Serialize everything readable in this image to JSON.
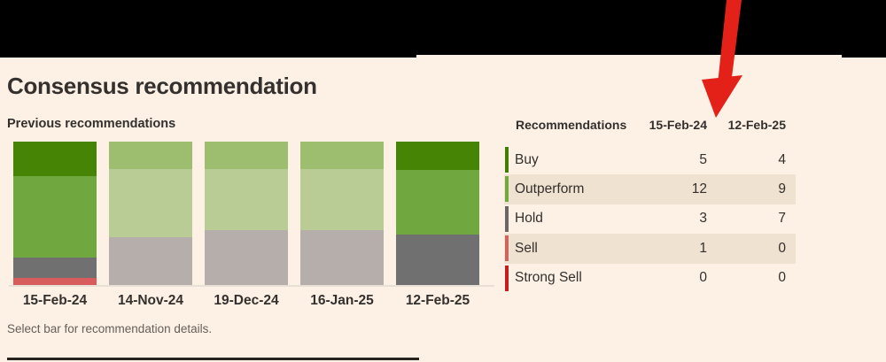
{
  "page": {
    "background_color": "#fdf0e4",
    "title": "Consensus recommendation",
    "footnote": "Select bar for recommendation details."
  },
  "chart": {
    "section_label": "Previous recommendations"
  },
  "chart_data": {
    "type": "bar",
    "stacked": true,
    "x_categories": [
      "15-Feb-24",
      "14-Nov-24",
      "19-Dec-24",
      "16-Jan-25",
      "12-Feb-25"
    ],
    "series": [
      {
        "name": "Buy",
        "values": [
          5,
          4,
          4,
          4,
          4
        ]
      },
      {
        "name": "Outperform",
        "values": [
          12,
          10,
          9,
          9,
          9
        ]
      },
      {
        "name": "Hold",
        "values": [
          3,
          7,
          8,
          8,
          7
        ]
      },
      {
        "name": "Sell",
        "values": [
          1,
          0,
          0,
          0,
          0
        ]
      },
      {
        "name": "Strong Sell",
        "values": [
          0,
          0,
          0,
          0,
          0
        ]
      }
    ],
    "highlighted_bars": [
      true,
      false,
      false,
      false,
      true
    ],
    "legend_position": "none",
    "grid": false
  },
  "colors": {
    "segment_active": {
      "Buy": "#458405",
      "Outperform": "#70a83f",
      "Hold": "#717070",
      "Sell": "#d95c5c",
      "Strong Sell": "#c01f1f"
    },
    "segment_faded": {
      "Buy": "#9cbe6e",
      "Outperform": "#bacc96",
      "Hold": "#b6aeab",
      "Sell": "#e3b6b0",
      "Strong Sell": "#d89a96"
    },
    "table_indicators": {
      "Buy": "#3f7d05",
      "Outperform": "#74a83f",
      "Hold": "#6a6663",
      "Sell": "#cd6660",
      "Strong Sell": "#c41f1f"
    },
    "row_stripe": "#f0e2d1",
    "arrow": "#e32119",
    "baseline": "#e9e0d5",
    "divider": "#26221e",
    "text_primary": "#33302e",
    "text_muted": "#655f5a"
  },
  "table": {
    "headers": [
      "Recommendations",
      "15-Feb-24",
      "12-Feb-25"
    ],
    "rows": [
      {
        "label": "Buy",
        "values": [
          5,
          4
        ]
      },
      {
        "label": "Outperform",
        "values": [
          12,
          9
        ]
      },
      {
        "label": "Hold",
        "values": [
          3,
          7
        ]
      },
      {
        "label": "Sell",
        "values": [
          1,
          0
        ]
      },
      {
        "label": "Strong Sell",
        "values": [
          0,
          0
        ]
      }
    ]
  }
}
